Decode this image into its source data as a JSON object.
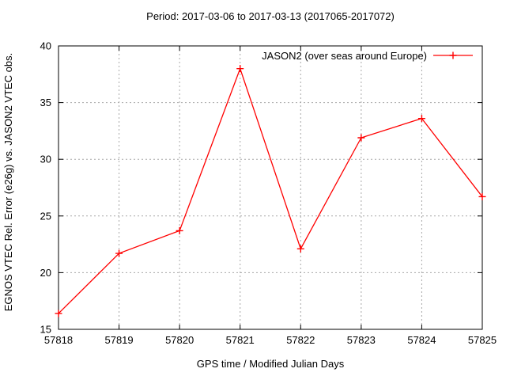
{
  "title": "Period: 2017-03-06 to 2017-03-13 (2017065-2017072)",
  "chart_data": {
    "type": "line",
    "title": "Period: 2017-03-06 to 2017-03-13 (2017065-2017072)",
    "xlabel": "GPS time / Modified Julian Days",
    "ylabel": "EGNOS VTEC Rel. Error (e26g) vs. JASON2 VTEC obs.",
    "xlim": [
      57818,
      57825
    ],
    "ylim": [
      15,
      40
    ],
    "xticks": [
      57818,
      57819,
      57820,
      57821,
      57822,
      57823,
      57824,
      57825
    ],
    "yticks": [
      15,
      20,
      25,
      30,
      35,
      40
    ],
    "grid": true,
    "legend_position": "top-right-inside",
    "series": [
      {
        "name": "JASON2 (over seas around Europe)",
        "color": "#ff0000",
        "marker": "plus",
        "x": [
          57818,
          57819,
          57820,
          57821,
          57822,
          57823,
          57824,
          57825
        ],
        "values": [
          16.4,
          21.7,
          23.7,
          38.0,
          22.1,
          31.9,
          33.6,
          26.7
        ]
      }
    ]
  },
  "colors": {
    "series": "#ff0000",
    "grid": "#a8a8a8",
    "frame": "#000000",
    "text": "#000000",
    "background": "#ffffff"
  }
}
